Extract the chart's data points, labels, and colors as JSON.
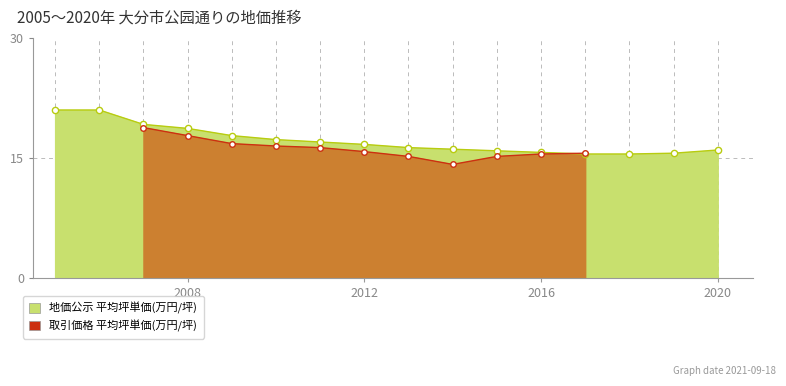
{
  "title": "2005～2020年 大分市公园通りの地価推移",
  "graph_date": "Graph date 2021-09-18",
  "legend_1": "地価公示 平均坪単価(万円/坪)",
  "legend_2": "取引価格 平均坪単価(万円/坪)",
  "kouji_years": [
    2005,
    2006,
    2007,
    2008,
    2009,
    2010,
    2011,
    2012,
    2013,
    2014,
    2015,
    2016,
    2017,
    2018,
    2019,
    2020
  ],
  "kouji_values": [
    21.0,
    21.0,
    19.2,
    18.7,
    17.8,
    17.3,
    17.0,
    16.7,
    16.3,
    16.1,
    15.9,
    15.7,
    15.5,
    15.5,
    15.6,
    16.0
  ],
  "torihiki_years": [
    2007,
    2008,
    2009,
    2010,
    2011,
    2012,
    2013,
    2014,
    2015,
    2016,
    2017
  ],
  "torihiki_values": [
    18.8,
    17.8,
    16.8,
    16.5,
    16.3,
    15.8,
    15.2,
    14.2,
    15.2,
    15.5,
    15.6
  ],
  "kouji_fill_color": "#c8e06e",
  "kouji_line_color": "#b8cc10",
  "torihiki_fill_color": "#cc8030",
  "torihiki_line_color": "#cc3010",
  "bg_color": "#ffffff",
  "ylim": [
    0,
    30
  ],
  "yticks": [
    0,
    15,
    30
  ],
  "xlim_min": 2004.5,
  "xlim_max": 2020.8,
  "grid_years": [
    2005,
    2006,
    2007,
    2008,
    2009,
    2010,
    2011,
    2012,
    2013,
    2014,
    2015,
    2016,
    2017,
    2018,
    2019,
    2020
  ],
  "grid_color": "#bbbbbb",
  "spine_color": "#999999",
  "title_color": "#333333",
  "tick_color": "#888888",
  "xtick_labels": [
    "2008",
    "2012",
    "2016",
    "2020"
  ],
  "xtick_pos": [
    2008,
    2012,
    2016,
    2020
  ]
}
